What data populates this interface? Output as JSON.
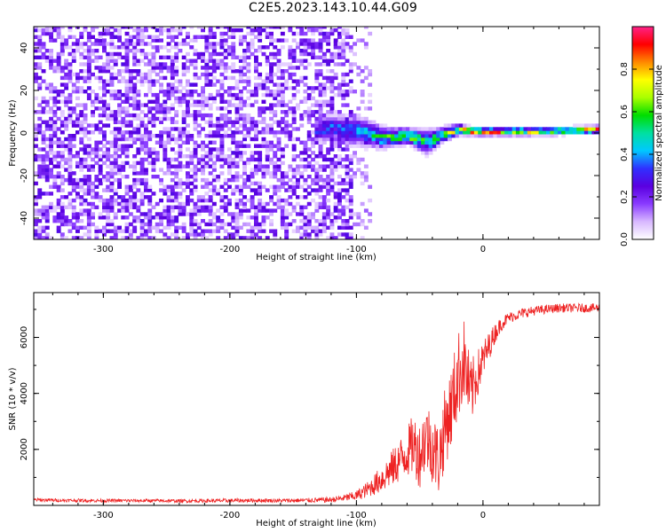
{
  "page": {
    "title": "C2E5.2023.143.10.44.G09",
    "palette": {
      "purple_dark": "#5a00e0",
      "purple_light": "#c9a6ff",
      "cyan": "#00d8d8",
      "green": "#00dd00",
      "yellow": "#ffff00",
      "red": "#ff0000",
      "line_red": "#ee2222"
    }
  },
  "chart_data": [
    {
      "type": "heatmap",
      "title": "",
      "xlabel": "Height of straight line (km)",
      "ylabel": "Frequency (Hz)",
      "xlim": [
        -355,
        92
      ],
      "ylim": [
        -50,
        50
      ],
      "xticks": [
        -300,
        -200,
        -100,
        0
      ],
      "yticks": [
        -40,
        -20,
        0,
        20,
        40
      ],
      "noise_region": {
        "x_range": [
          -355,
          -105
        ],
        "amplitude": 0.12
      },
      "signal_ridge": {
        "x": [
          -135,
          -120,
          -100,
          -80,
          -60,
          -45,
          -35,
          -20,
          -10,
          0,
          20,
          50,
          92
        ],
        "center_frequency": [
          0,
          2,
          0,
          -3,
          -2,
          -5,
          -2,
          1,
          0,
          0,
          0,
          0,
          1
        ],
        "half_width": [
          5,
          5,
          6,
          4,
          3,
          5,
          3,
          2,
          1.5,
          1.5,
          1.5,
          1.5,
          1.5
        ],
        "peak_amplitude": [
          0.3,
          0.35,
          0.4,
          0.55,
          0.65,
          0.5,
          0.6,
          0.75,
          0.9,
          0.95,
          0.8,
          0.7,
          0.85
        ]
      },
      "colorbar": {
        "label": "Normalized spectral amplitude",
        "range": [
          0,
          1
        ],
        "ticks": [
          0.0,
          0.2,
          0.4,
          0.6,
          0.8
        ],
        "colors": [
          "#ffffff",
          "#d8b8ff",
          "#8a3cff",
          "#5a00e0",
          "#3030ff",
          "#00c8ff",
          "#00e0a0",
          "#00dd00",
          "#aaff00",
          "#ffff00",
          "#ff8800",
          "#ff0000",
          "#ff2288"
        ]
      }
    },
    {
      "type": "line",
      "title": "",
      "xlabel": "Height of straight line (km)",
      "ylabel": "SNR (10 * v/v)",
      "xlim": [
        -355,
        92
      ],
      "ylim": [
        0,
        7600
      ],
      "xticks": [
        -300,
        -200,
        -100,
        0
      ],
      "yticks": [
        2000,
        4000,
        6000
      ],
      "series": [
        {
          "color": "#ee2222",
          "x": [
            -355,
            -330,
            -300,
            -270,
            -240,
            -200,
            -180,
            -160,
            -140,
            -120,
            -110,
            -100,
            -90,
            -80,
            -70,
            -60,
            -55,
            -50,
            -45,
            -40,
            -35,
            -30,
            -25,
            -20,
            -15,
            -10,
            -5,
            0,
            5,
            10,
            15,
            20,
            30,
            40,
            50,
            60,
            70,
            80,
            92
          ],
          "y": [
            200,
            180,
            170,
            170,
            160,
            170,
            180,
            170,
            180,
            200,
            260,
            350,
            600,
            950,
            1400,
            1900,
            2200,
            1800,
            2500,
            2100,
            1600,
            2800,
            3500,
            4600,
            5200,
            3900,
            4600,
            5200,
            5700,
            6200,
            6500,
            6700,
            6850,
            6950,
            7000,
            7050,
            7050,
            7050,
            7050
          ],
          "noise": [
            60,
            60,
            60,
            60,
            60,
            70,
            70,
            70,
            80,
            100,
            120,
            180,
            300,
            500,
            700,
            900,
            1100,
            1200,
            1300,
            1300,
            1300,
            1400,
            1500,
            1600,
            1500,
            1300,
            900,
            700,
            500,
            350,
            250,
            200,
            180,
            170,
            160,
            160,
            160,
            160,
            160
          ]
        }
      ]
    }
  ]
}
